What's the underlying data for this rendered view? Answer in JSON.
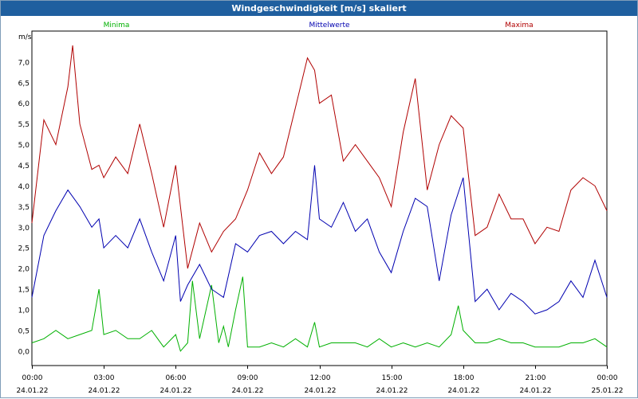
{
  "chart_data": {
    "type": "line",
    "title": "Windgeschwindigkeit [m/s] skaliert",
    "ylabel": "m/s",
    "ylim": [
      -0.35,
      7.75
    ],
    "y_ticks": [
      "0,0",
      "0,5",
      "1,0",
      "1,5",
      "2,0",
      "2,5",
      "3,0",
      "3,5",
      "4,0",
      "4,5",
      "5,0",
      "5,5",
      "6,0",
      "6,5",
      "7,0"
    ],
    "x_range_hours": [
      0,
      24
    ],
    "x_ticks": [
      {
        "time": "00:00",
        "date": "24.01.22"
      },
      {
        "time": "03:00",
        "date": "24.01.22"
      },
      {
        "time": "06:00",
        "date": "24.01.22"
      },
      {
        "time": "09:00",
        "date": "24.01.22"
      },
      {
        "time": "12:00",
        "date": "24.01.22"
      },
      {
        "time": "15:00",
        "date": "24.01.22"
      },
      {
        "time": "18:00",
        "date": "24.01.22"
      },
      {
        "time": "21:00",
        "date": "24.01.22"
      },
      {
        "time": "00:00",
        "date": "25.01.22"
      }
    ],
    "grid": true,
    "series": [
      {
        "name": "Minima",
        "color": "#00b000",
        "x_hours": [
          0,
          0.5,
          1,
          1.5,
          2,
          2.5,
          2.8,
          3,
          3.5,
          4,
          4.5,
          5,
          5.5,
          6,
          6.2,
          6.5,
          6.7,
          7,
          7.5,
          7.8,
          8,
          8.2,
          8.5,
          8.8,
          9,
          9.5,
          10,
          10.5,
          11,
          11.5,
          11.8,
          12,
          12.5,
          13,
          13.5,
          14,
          14.5,
          15,
          15.5,
          16,
          16.5,
          17,
          17.5,
          17.8,
          18,
          18.5,
          19,
          19.5,
          20,
          20.5,
          21,
          21.5,
          22,
          22.5,
          23,
          23.5,
          24
        ],
        "values": [
          0.2,
          0.3,
          0.5,
          0.3,
          0.4,
          0.5,
          1.5,
          0.4,
          0.5,
          0.3,
          0.3,
          0.5,
          0.1,
          0.4,
          0.0,
          0.2,
          1.7,
          0.3,
          1.6,
          0.2,
          0.6,
          0.1,
          1.0,
          1.8,
          0.1,
          0.1,
          0.2,
          0.1,
          0.3,
          0.1,
          0.7,
          0.1,
          0.2,
          0.2,
          0.2,
          0.1,
          0.3,
          0.1,
          0.2,
          0.1,
          0.2,
          0.1,
          0.4,
          1.1,
          0.5,
          0.2,
          0.2,
          0.3,
          0.2,
          0.2,
          0.1,
          0.1,
          0.1,
          0.2,
          0.2,
          0.3,
          0.1
        ]
      },
      {
        "name": "Mittelwerte",
        "color": "#0000b0",
        "x_hours": [
          0,
          0.5,
          1,
          1.5,
          2,
          2.5,
          2.8,
          3,
          3.5,
          4,
          4.5,
          5,
          5.5,
          6,
          6.2,
          6.5,
          7,
          7.5,
          8,
          8.5,
          9,
          9.5,
          10,
          10.5,
          11,
          11.5,
          11.8,
          12,
          12.5,
          13,
          13.5,
          14,
          14.5,
          15,
          15.5,
          16,
          16.5,
          17,
          17.5,
          18,
          18.5,
          19,
          19.5,
          20,
          20.5,
          21,
          21.5,
          22,
          22.5,
          23,
          23.5,
          24
        ],
        "values": [
          1.3,
          2.8,
          3.4,
          3.9,
          3.5,
          3.0,
          3.2,
          2.5,
          2.8,
          2.5,
          3.2,
          2.4,
          1.7,
          2.8,
          1.2,
          1.6,
          2.1,
          1.5,
          1.3,
          2.6,
          2.4,
          2.8,
          2.9,
          2.6,
          2.9,
          2.7,
          4.5,
          3.2,
          3.0,
          3.6,
          2.9,
          3.2,
          2.4,
          1.9,
          2.9,
          3.7,
          3.5,
          1.7,
          3.3,
          4.2,
          1.2,
          1.5,
          1.0,
          1.4,
          1.2,
          0.9,
          1.0,
          1.2,
          1.7,
          1.3,
          2.2,
          1.3
        ]
      },
      {
        "name": "Maxima",
        "color": "#b00000",
        "x_hours": [
          0,
          0.5,
          1,
          1.5,
          1.7,
          2,
          2.5,
          2.8,
          3,
          3.5,
          4,
          4.5,
          5,
          5.5,
          6,
          6.2,
          6.5,
          7,
          7.5,
          8,
          8.5,
          9,
          9.5,
          10,
          10.5,
          11,
          11.5,
          11.8,
          12,
          12.5,
          13,
          13.5,
          14,
          14.5,
          15,
          15.5,
          16,
          16.5,
          17,
          17.5,
          18,
          18.5,
          19,
          19.5,
          20,
          20.5,
          21,
          21.5,
          22,
          22.5,
          23,
          23.5,
          24
        ],
        "values": [
          3.1,
          5.6,
          5.0,
          6.4,
          7.4,
          5.5,
          4.4,
          4.5,
          4.2,
          4.7,
          4.3,
          5.5,
          4.3,
          3.0,
          4.5,
          3.5,
          2.0,
          3.1,
          2.4,
          2.9,
          3.2,
          3.9,
          4.8,
          4.3,
          4.7,
          5.9,
          7.1,
          6.8,
          6.0,
          6.2,
          4.6,
          5.0,
          4.6,
          4.2,
          3.5,
          5.3,
          6.6,
          3.9,
          5.0,
          5.7,
          5.4,
          2.8,
          3.0,
          3.8,
          3.2,
          3.2,
          2.6,
          3.0,
          2.9,
          3.9,
          4.2,
          4.0,
          3.4
        ]
      }
    ]
  }
}
